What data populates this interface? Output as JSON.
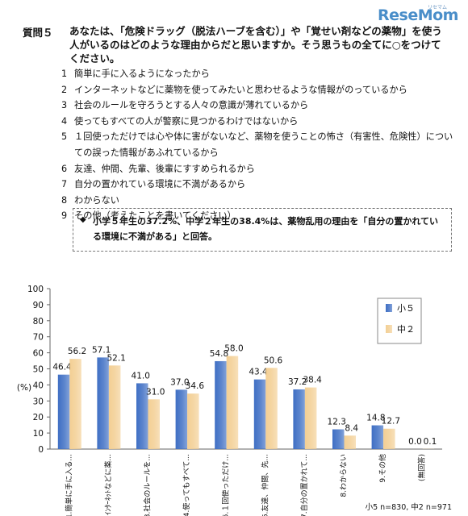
{
  "brand": {
    "logo": "ReseMom",
    "logo_sub": "リセマム"
  },
  "question": {
    "number": "質問５",
    "text": "あなたは、「危険ドラッグ（脱法ハーブを含む）」や「覚せい剤などの薬物」を使う人がいるのはどのような理由からだと思いますか。そう思うもの全てに○をつけてください。",
    "options": [
      {
        "n": "1",
        "t": "簡単に手に入るようになったから"
      },
      {
        "n": "2",
        "t": "インターネットなどに薬物を使ってみたいと思わせるような情報がのっているから"
      },
      {
        "n": "3",
        "t": "社会のルールを守ろうとする人々の意識が薄れているから"
      },
      {
        "n": "4",
        "t": "使ってもすべての人が警察に見つかるわけではないから"
      },
      {
        "n": "5",
        "t": "１回使っただけでは心や体に害がないなど、薬物を使うことの怖さ（有害性、危険性）についての誤った情報があふれているから"
      },
      {
        "n": "6",
        "t": "友達、仲間、先輩、後輩にすすめられるから"
      },
      {
        "n": "7",
        "t": "自分の置かれている環境に不満があるから"
      },
      {
        "n": "8",
        "t": "わからない"
      },
      {
        "n": "9",
        "t": "その他（考えたことを書いてください）"
      }
    ]
  },
  "summary": {
    "bullet": "◆",
    "text": "小学５年生の37.2%、中学２年生の38.4%は、薬物乱用の理由を「自分の置かれている環境に不満がある」と回答。"
  },
  "chart_data": {
    "type": "bar",
    "ylabel": "(%)",
    "ylim": [
      0,
      100
    ],
    "yticks": [
      0,
      10,
      20,
      30,
      40,
      50,
      60,
      70,
      80,
      90,
      100
    ],
    "categories": [
      "1.簡単に手に入る...",
      "2.ｲﾝﾀｰﾈｯﾄなどに薬...",
      "3.社会のルールを...",
      "4.使ってもすべて...",
      "5.１回使っただけ...",
      "6.友達、仲間、先...",
      "7.自分の置かれて...",
      "8.わからない",
      "9.その他",
      "(無回答)"
    ],
    "series": [
      {
        "name": "小５",
        "color": "#3f6fc4",
        "values": [
          46.4,
          57.1,
          41.0,
          37.0,
          54.8,
          43.4,
          37.2,
          12.3,
          14.8,
          0.0
        ]
      },
      {
        "name": "中２",
        "color": "#f3cf94",
        "values": [
          56.2,
          52.1,
          31.0,
          34.6,
          58.0,
          50.6,
          38.4,
          8.4,
          12.7,
          0.1
        ]
      }
    ],
    "legend": "right",
    "note": "小5 n=830, 中2 n=971"
  }
}
